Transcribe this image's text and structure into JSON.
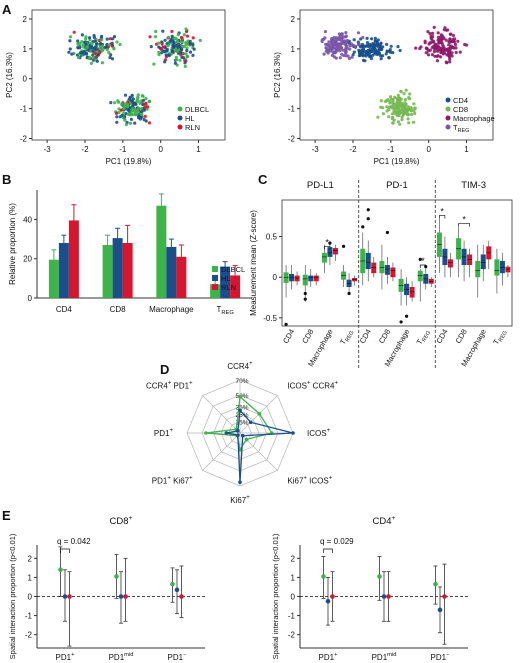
{
  "panel_labels": {
    "A": "A",
    "B": "B",
    "C": "C",
    "D": "D",
    "E": "E"
  },
  "colors": {
    "dlbcl": "#3db34a",
    "hl": "#1a4f8c",
    "rln": "#d7152e",
    "cd4": "#1a4f8c",
    "cd8": "#76b852",
    "macrophage": "#8e1a6b",
    "treg": "#7a55a8"
  },
  "chart_data": [
    {
      "id": "A-left",
      "type": "scatter",
      "xlabel": "PC1 (19.8%)",
      "ylabel": "PC2 (16.3%)",
      "xlim": [
        -3.4,
        1.7
      ],
      "ylim": [
        -2.05,
        2.3
      ],
      "xticks": [
        "-3",
        "-2",
        "-1",
        "0",
        "1"
      ],
      "xtick_values": [
        -3,
        -2,
        -1,
        0,
        1
      ],
      "yticks": [
        "-2",
        "-1",
        "0",
        "1",
        "2"
      ],
      "ytick_values": [
        -2,
        -1,
        0,
        1,
        2
      ],
      "legend": "bottom-right",
      "series": [
        {
          "name": "DLBCL",
          "color": "#3db34a"
        },
        {
          "name": "HL",
          "color": "#1a4f8c"
        },
        {
          "name": "RLN",
          "color": "#d7152e"
        }
      ],
      "clusters": [
        {
          "center": [
            -1.8,
            1.05
          ],
          "spread": [
            0.75,
            0.55
          ]
        },
        {
          "center": [
            0.35,
            1.05
          ],
          "spread": [
            0.6,
            0.6
          ]
        },
        {
          "center": [
            -0.75,
            -1.0
          ],
          "spread": [
            0.5,
            0.55
          ]
        }
      ]
    },
    {
      "id": "A-right",
      "type": "scatter",
      "xlabel": "PC1 (19.8%)",
      "ylabel": "PC2 (16.3%)",
      "xlim": [
        -3.4,
        1.7
      ],
      "ylim": [
        -2.05,
        2.3
      ],
      "xticks": [
        "-3",
        "-2",
        "-1",
        "0",
        "1"
      ],
      "xtick_values": [
        -3,
        -2,
        -1,
        0,
        1
      ],
      "yticks": [
        "-2",
        "-1",
        "0",
        "1",
        "2"
      ],
      "ytick_values": [
        -2,
        -1,
        0,
        1,
        2
      ],
      "legend": "bottom-right",
      "series": [
        {
          "name": "CD4",
          "color": "#1a4f8c"
        },
        {
          "name": "CD8",
          "color": "#76b852"
        },
        {
          "name": "Macrophage",
          "color": "#8e1a6b"
        },
        {
          "name": "T",
          "sub": "REG",
          "color": "#7a55a8"
        }
      ],
      "clusters": [
        {
          "center": [
            0.35,
            1.05
          ],
          "spread": [
            0.6,
            0.6
          ],
          "series": 2
        },
        {
          "center": [
            -0.75,
            -1.0
          ],
          "spread": [
            0.5,
            0.55
          ],
          "series": 1
        },
        {
          "center": [
            -1.5,
            1.0
          ],
          "spread": [
            0.6,
            0.35
          ],
          "series": 0
        },
        {
          "center": [
            -2.4,
            1.1
          ],
          "spread": [
            0.5,
            0.45
          ],
          "series": 3
        }
      ]
    },
    {
      "id": "B",
      "type": "bar",
      "ylabel": "Relative proportion (%)",
      "ylim": [
        0,
        55
      ],
      "yticks": [
        "0",
        "20",
        "40"
      ],
      "ytick_values": [
        0,
        20,
        40
      ],
      "categories": [
        "CD4",
        "CD8",
        "Macrophage",
        "T"
      ],
      "category_subs": [
        "",
        "",
        "",
        "REG"
      ],
      "legend": "bottom-right",
      "series": [
        {
          "name": "DLBCL",
          "color": "#3db34a",
          "values": [
            19.5,
            27,
            47,
            7
          ],
          "errors": [
            5,
            5,
            6,
            2
          ]
        },
        {
          "name": "HL",
          "color": "#1a4f8c",
          "values": [
            28,
            30.5,
            26,
            16
          ],
          "errors": [
            4,
            5,
            4,
            2.5
          ]
        },
        {
          "name": "RLN",
          "color": "#d7152e",
          "values": [
            39.5,
            28,
            21,
            11.5
          ],
          "errors": [
            8,
            9,
            6,
            5
          ]
        }
      ]
    },
    {
      "id": "C",
      "type": "box",
      "ylabel": "Measurement mean (Z-score)",
      "ylim": [
        -0.6,
        0.95
      ],
      "yticks": [
        "-0.5",
        "0",
        "0.5"
      ],
      "ytick_values": [
        -0.5,
        0,
        0.5
      ],
      "categories": [
        "CD4",
        "CD8",
        "Macrophage",
        "T"
      ],
      "category_subs": [
        "",
        "",
        "",
        "REG"
      ],
      "group_colors": [
        "#3db34a",
        "#1a4f8c",
        "#d7152e"
      ],
      "panels": [
        {
          "title": "PD-L1",
          "medians": [
            [
              0.0,
              0.0,
              -0.01
            ],
            [
              -0.02,
              0.0,
              0.0
            ],
            [
              0.25,
              0.3,
              0.33
            ],
            [
              0.02,
              -0.08,
              -0.03
            ]
          ],
          "q1": [
            [
              -0.07,
              -0.05,
              -0.05
            ],
            [
              -0.1,
              -0.05,
              -0.05
            ],
            [
              0.18,
              0.25,
              0.28
            ],
            [
              -0.03,
              -0.12,
              -0.05
            ]
          ],
          "q3": [
            [
              0.06,
              0.04,
              0.02
            ],
            [
              0.03,
              0.02,
              0.02
            ],
            [
              0.3,
              0.37,
              0.36
            ],
            [
              0.07,
              -0.03,
              -0.01
            ]
          ],
          "wlo": [
            [
              -0.25,
              -0.15,
              -0.1
            ],
            [
              -0.3,
              -0.12,
              -0.1
            ],
            [
              0.05,
              0.15,
              0.2
            ],
            [
              -0.12,
              -0.2,
              -0.1
            ]
          ],
          "whi": [
            [
              0.15,
              0.15,
              0.07
            ],
            [
              0.15,
              0.1,
              0.05
            ],
            [
              0.4,
              0.45,
              0.4
            ],
            [
              0.15,
              0.05,
              0.02
            ]
          ],
          "outliers": [
            [
              [
                -0.58
              ],
              [],
              []
            ],
            [
              [
                -0.2,
                -0.27
              ],
              [],
              []
            ],
            [
              [],
              [
                0.42
              ],
              []
            ],
            [
              [
                0.38
              ],
              [
                -0.2
              ],
              []
            ]
          ],
          "sig": [
            {
              "cat": 2,
              "from": 0,
              "to": 1,
              "y": 0.38,
              "text": "*"
            }
          ]
        },
        {
          "title": "PD-1",
          "medians": [
            [
              0.2,
              0.18,
              0.12
            ],
            [
              0.12,
              0.1,
              0.08
            ],
            [
              -0.1,
              -0.15,
              -0.18
            ],
            [
              0.02,
              -0.02,
              -0.05
            ]
          ],
          "q1": [
            [
              0.05,
              0.1,
              0.05
            ],
            [
              0.05,
              0.03,
              0.0
            ],
            [
              -0.18,
              -0.22,
              -0.25
            ],
            [
              -0.05,
              -0.08,
              -0.08
            ]
          ],
          "q3": [
            [
              0.35,
              0.3,
              0.18
            ],
            [
              0.2,
              0.15,
              0.12
            ],
            [
              -0.02,
              -0.08,
              -0.12
            ],
            [
              0.08,
              0.04,
              -0.02
            ]
          ],
          "wlo": [
            [
              -0.1,
              -0.05,
              0.0
            ],
            [
              -0.15,
              -0.08,
              -0.05
            ],
            [
              -0.35,
              -0.35,
              -0.3
            ],
            [
              -0.3,
              -0.15,
              -0.12
            ]
          ],
          "whi": [
            [
              0.55,
              0.45,
              0.25
            ],
            [
              0.4,
              0.25,
              0.18
            ],
            [
              0.1,
              0.0,
              -0.05
            ],
            [
              0.1,
              0.12,
              0.0
            ]
          ],
          "outliers": [
            [
              [
                0.62
              ],
              [
                0.83,
                0.72
              ],
              []
            ],
            [
              [],
              [
                0.55
              ],
              []
            ],
            [
              [
                -0.55
              ],
              [
                -0.48
              ],
              []
            ],
            [
              [
                0.22
              ],
              [
                0.13
              ],
              []
            ]
          ],
          "sig": [
            {
              "cat": 3,
              "from": 0,
              "to": 1,
              "y": 0.15,
              "text": "*"
            }
          ]
        },
        {
          "title": "TIM-3",
          "medians": [
            [
              0.4,
              0.25,
              0.18
            ],
            [
              0.35,
              0.25,
              0.22
            ],
            [
              0.08,
              0.18,
              0.3
            ],
            [
              0.08,
              0.12,
              0.1
            ]
          ],
          "q1": [
            [
              0.25,
              0.15,
              0.12
            ],
            [
              0.22,
              0.15,
              0.15
            ],
            [
              0.0,
              0.1,
              0.22
            ],
            [
              0.02,
              0.05,
              0.06
            ]
          ],
          "q3": [
            [
              0.55,
              0.35,
              0.22
            ],
            [
              0.48,
              0.35,
              0.28
            ],
            [
              0.2,
              0.28,
              0.38
            ],
            [
              0.22,
              0.2,
              0.13
            ]
          ],
          "wlo": [
            [
              0.05,
              0.0,
              0.0
            ],
            [
              0.0,
              -0.05,
              0.0
            ],
            [
              -0.25,
              -0.05,
              0.1
            ],
            [
              -0.2,
              -0.1,
              0.0
            ]
          ],
          "whi": [
            [
              0.72,
              0.5,
              0.3
            ],
            [
              0.62,
              0.45,
              0.35
            ],
            [
              0.4,
              0.4,
              0.45
            ],
            [
              0.35,
              0.3,
              0.15
            ]
          ],
          "outliers": [
            [
              [],
              [],
              []
            ],
            [
              [],
              [],
              []
            ],
            [
              [],
              [],
              []
            ],
            [
              [],
              [],
              []
            ]
          ],
          "sig": [
            {
              "cat": 0,
              "from": 0,
              "to": 1,
              "y": 0.76,
              "text": "*"
            },
            {
              "cat": 1,
              "from": 0,
              "to": 2,
              "y": 0.66,
              "text": "*"
            }
          ]
        }
      ]
    },
    {
      "id": "D",
      "type": "radar",
      "axes": [
        {
          "label": "CCR4",
          "sup": "+"
        },
        {
          "label": "ICOS",
          "sup": "+",
          "label2": " CCR4",
          "sup2": "+"
        },
        {
          "label": "ICOS",
          "sup": "+"
        },
        {
          "label": "Ki67",
          "sup": "+",
          "label2": " ICOS",
          "sup2": "+"
        },
        {
          "label": "Ki67",
          "sup": "+"
        },
        {
          "label": "PD1",
          "sup": "+",
          "label2": " Ki67",
          "sup2": "+"
        },
        {
          "label": "PD1",
          "sup": "+"
        },
        {
          "label": "CCR4",
          "sup": "+",
          "label2": " PD1",
          "sup2": "+"
        }
      ],
      "rings": [
        "70%",
        "50%",
        "35%",
        "25%",
        "15%"
      ],
      "ring_values": [
        70,
        50,
        35,
        25,
        15
      ],
      "max": 70,
      "series": [
        {
          "name": "DLBCL",
          "color": "#3db34a",
          "values": [
            48,
            36,
            42,
            12,
            22,
            5,
            45,
            7
          ]
        },
        {
          "name": "HL",
          "color": "#1a4f8c",
          "values": [
            30,
            20,
            70,
            5,
            65,
            4,
            18,
            4
          ]
        }
      ]
    },
    {
      "id": "E-left",
      "type": "scatter",
      "title": "CD8",
      "title_sup": "+",
      "ylabel": "Spatial interaction proportion (p<0.01)",
      "ylim": [
        -2.7,
        2.7
      ],
      "yticks": [
        "-2",
        "-1",
        "0",
        "1",
        "2"
      ],
      "ytick_values": [
        -2,
        -1,
        0,
        1,
        2
      ],
      "categories": [
        "PD1",
        "PD1",
        "PD1"
      ],
      "category_sups": [
        "+",
        "mid",
        "−"
      ],
      "group_colors": [
        "#3db34a",
        "#1a4f8c",
        "#d7152e"
      ],
      "points": [
        [
          1.4,
          0.0,
          0.0
        ],
        [
          1.05,
          0.0,
          0.0
        ],
        [
          0.65,
          0.35,
          0.0
        ]
      ],
      "lo": [
        [
          0.0,
          -1.3,
          -2.6
        ],
        [
          -0.1,
          -1.4,
          -1.3
        ],
        [
          -0.3,
          -0.9,
          -1.1
        ]
      ],
      "hi": [
        [
          2.6,
          1.4,
          1.3
        ],
        [
          2.2,
          1.3,
          2.0
        ],
        [
          1.5,
          1.4,
          1.6
        ]
      ],
      "annotation": "q = 0.042"
    },
    {
      "id": "E-right",
      "type": "scatter",
      "title": "CD4",
      "title_sup": "+",
      "ylabel": "Spatial interaction proportion (p<0.01)",
      "ylim": [
        -2.7,
        2.7
      ],
      "yticks": [
        "-2",
        "-1",
        "0",
        "1",
        "2"
      ],
      "ytick_values": [
        -2,
        -1,
        0,
        1,
        2
      ],
      "categories": [
        "PD1",
        "PD1",
        "PD1"
      ],
      "category_sups": [
        "+",
        "mid",
        "−"
      ],
      "group_colors": [
        "#3db34a",
        "#1a4f8c",
        "#d7152e"
      ],
      "points": [
        [
          1.05,
          -0.25,
          0.0
        ],
        [
          1.05,
          0.0,
          0.0
        ],
        [
          0.65,
          -0.7,
          0.0
        ]
      ],
      "lo": [
        [
          -0.1,
          -1.5,
          -1.3
        ],
        [
          -0.2,
          -1.3,
          -1.3
        ],
        [
          -0.4,
          -1.9,
          -2.5
        ]
      ],
      "hi": [
        [
          2.1,
          1.0,
          1.3
        ],
        [
          2.1,
          1.3,
          1.3
        ],
        [
          1.6,
          0.5,
          1.7
        ]
      ],
      "annotation": "q = 0.029"
    }
  ]
}
